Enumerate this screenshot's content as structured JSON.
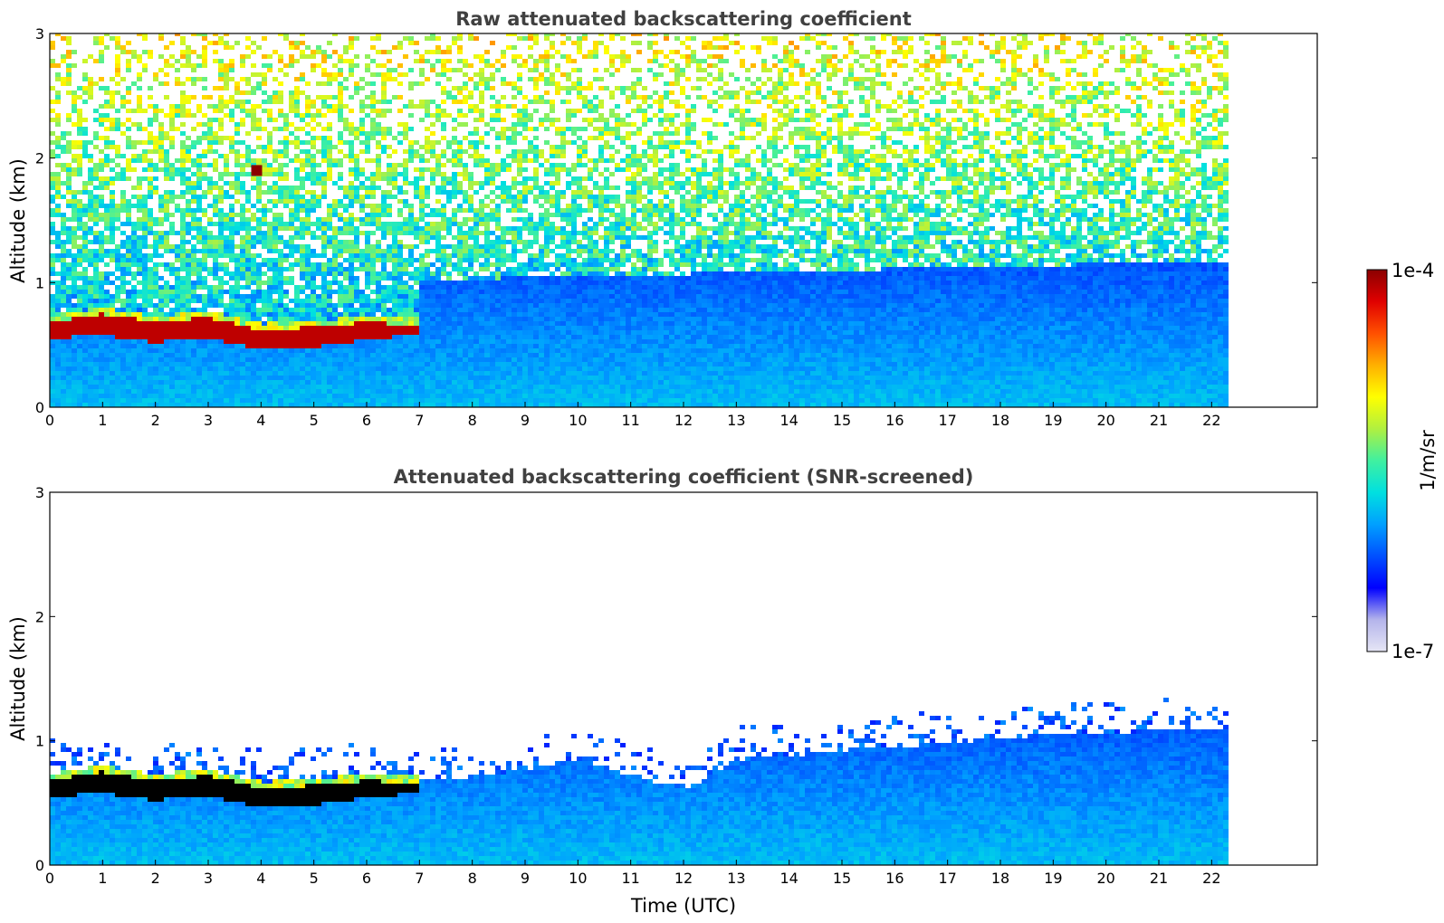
{
  "colormap_stops": [
    "#e6e6f5",
    "#b4b4eb",
    "#0000ff",
    "#0050ff",
    "#00a0ff",
    "#00e0e0",
    "#40f0a0",
    "#b0f040",
    "#ffff00",
    "#ffb000",
    "#ff5000",
    "#e00000",
    "#8b0000"
  ],
  "colorbar": {
    "label": "1/m/sr",
    "max_label": "1e-4",
    "min_label": "1e-7",
    "min": 1e-07,
    "max": 0.0001,
    "scale": "log"
  },
  "x_axis_label": "Time (UTC)",
  "chart_data": [
    {
      "type": "heatmap",
      "title": "Raw attenuated backscattering coefficient",
      "xlabel": "",
      "ylabel": "Altitude (km)",
      "xlim": [
        0,
        24
      ],
      "ylim": [
        0,
        3
      ],
      "x_ticks": [
        "0",
        "1",
        "2",
        "3",
        "4",
        "5",
        "6",
        "7",
        "8",
        "9",
        "10",
        "11",
        "12",
        "13",
        "14",
        "15",
        "16",
        "17",
        "18",
        "19",
        "20",
        "21",
        "22"
      ],
      "y_ticks": [
        "0",
        "1",
        "2",
        "3"
      ],
      "data_end_time": 22.3,
      "cloud_base_km": [
        {
          "t": 0.0,
          "base": 0.55,
          "top": 0.68
        },
        {
          "t": 1.0,
          "base": 0.58,
          "top": 0.75
        },
        {
          "t": 2.0,
          "base": 0.52,
          "top": 0.68
        },
        {
          "t": 3.0,
          "base": 0.56,
          "top": 0.72
        },
        {
          "t": 4.0,
          "base": 0.46,
          "top": 0.62
        },
        {
          "t": 5.0,
          "base": 0.48,
          "top": 0.64
        },
        {
          "t": 6.0,
          "base": 0.54,
          "top": 0.68
        },
        {
          "t": 6.9,
          "base": 0.58,
          "top": 0.66
        }
      ],
      "features": [
        {
          "t": 3.9,
          "alt_km": 1.9,
          "level": "1e-4"
        }
      ]
    },
    {
      "type": "heatmap",
      "title": "Attenuated backscattering coefficient (SNR-screened)",
      "xlabel": "Time (UTC)",
      "ylabel": "Altitude (km)",
      "xlim": [
        0,
        24
      ],
      "ylim": [
        0,
        3
      ],
      "x_ticks": [
        "0",
        "1",
        "2",
        "3",
        "4",
        "5",
        "6",
        "7",
        "8",
        "9",
        "10",
        "11",
        "12",
        "13",
        "14",
        "15",
        "16",
        "17",
        "18",
        "19",
        "20",
        "21",
        "22"
      ],
      "y_ticks": [
        "0",
        "1",
        "2",
        "3"
      ],
      "data_end_time": 22.3,
      "boundary_layer_top_km": [
        {
          "t": 0,
          "alt": 0.75
        },
        {
          "t": 7,
          "alt": 0.7
        },
        {
          "t": 8,
          "alt": 0.7
        },
        {
          "t": 10,
          "alt": 0.85
        },
        {
          "t": 12,
          "alt": 0.6
        },
        {
          "t": 13,
          "alt": 0.85
        },
        {
          "t": 16,
          "alt": 0.95
        },
        {
          "t": 19,
          "alt": 1.05
        },
        {
          "t": 22.3,
          "alt": 1.1
        }
      ]
    }
  ]
}
